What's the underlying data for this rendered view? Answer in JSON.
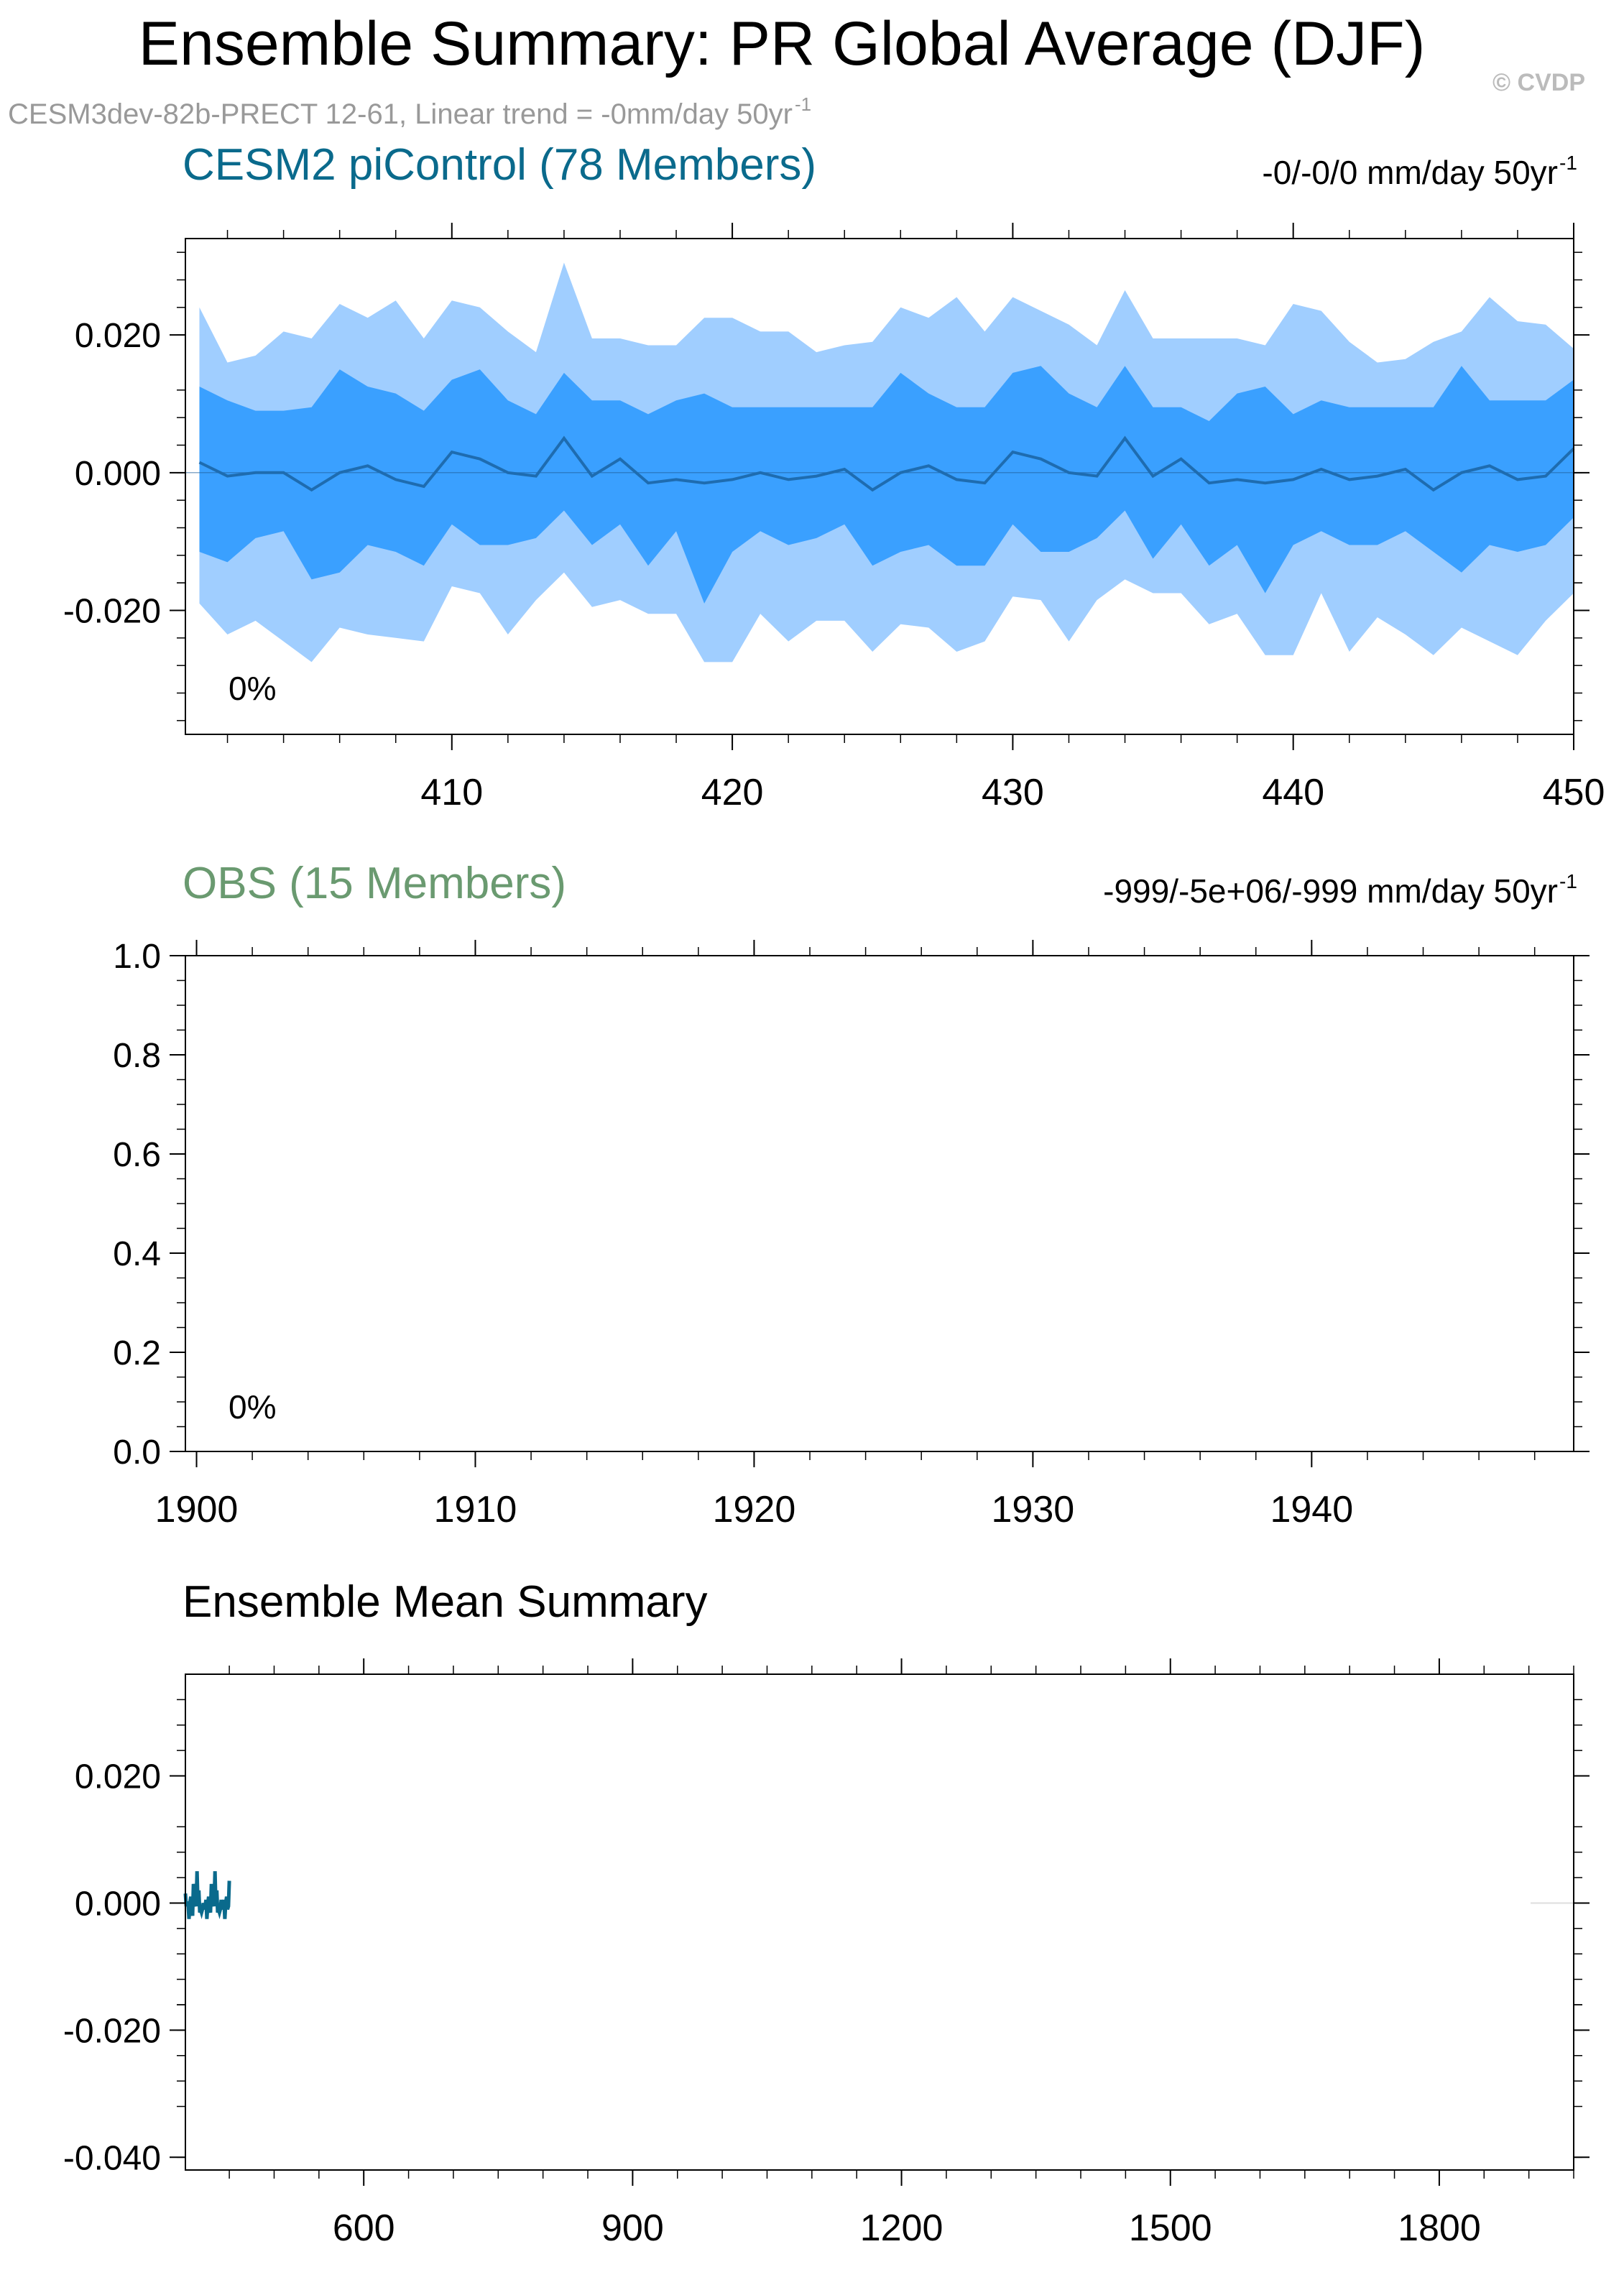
{
  "page": {
    "title": "Ensemble Summary: PR Global Average (DJF)",
    "watermark": "© CVDP",
    "subtitle_main": "CESM3dev-82b-PRECT 12-61, Linear trend = -0mm/day 50yr",
    "subtitle_sup": "-1"
  },
  "colors": {
    "band_outer": "#a0ceff",
    "band_inner": "#3aa0ff",
    "mean_line": "#1e6cb0",
    "model_title": "#0a6a8c",
    "obs_title": "#6a9a70",
    "subtitle": "#999999",
    "watermark": "#bbbbbb",
    "summary_line": "#0a6a8c"
  },
  "chart_data": [
    {
      "type": "area",
      "panel": "model",
      "title": "CESM2 piControl (78 Members)",
      "trend_main": "-0/-0/0 mm/day 50yr",
      "trend_sup": "-1",
      "annotation": "0%",
      "xlim": [
        400.5,
        450
      ],
      "ylim": [
        -0.038,
        0.034
      ],
      "xticks": [
        410,
        420,
        430,
        440,
        450
      ],
      "yticks": [
        0.02,
        0.0,
        -0.02
      ],
      "tick_labels_y": [
        "0.020",
        "0.000",
        "-0.020"
      ],
      "tick_labels_x": [
        "410",
        "420",
        "430",
        "440",
        "450"
      ],
      "x": [
        401,
        402,
        403,
        404,
        405,
        406,
        407,
        408,
        409,
        410,
        411,
        412,
        413,
        414,
        415,
        416,
        417,
        418,
        419,
        420,
        421,
        422,
        423,
        424,
        425,
        426,
        427,
        428,
        429,
        430,
        431,
        432,
        433,
        434,
        435,
        436,
        437,
        438,
        439,
        440,
        441,
        442,
        443,
        444,
        445,
        446,
        447,
        448,
        449,
        450
      ],
      "series": [
        {
          "role": "max",
          "values": [
            0.024,
            0.016,
            0.017,
            0.0205,
            0.0195,
            0.0245,
            0.0225,
            0.025,
            0.0195,
            0.025,
            0.024,
            0.0205,
            0.0175,
            0.0305,
            0.0195,
            0.0195,
            0.0185,
            0.0185,
            0.0225,
            0.0225,
            0.0205,
            0.0205,
            0.0175,
            0.0185,
            0.019,
            0.024,
            0.0225,
            0.0255,
            0.0205,
            0.0255,
            0.0235,
            0.0215,
            0.0185,
            0.0265,
            0.0195,
            0.0195,
            0.0195,
            0.0195,
            0.0185,
            0.0245,
            0.0235,
            0.019,
            0.016,
            0.0165,
            0.019,
            0.0205,
            0.0255,
            0.022,
            0.0215,
            0.018
          ]
        },
        {
          "role": "p90",
          "values": [
            0.0125,
            0.0105,
            0.009,
            0.009,
            0.0095,
            0.015,
            0.0125,
            0.0115,
            0.009,
            0.0135,
            0.015,
            0.0105,
            0.0085,
            0.0145,
            0.0105,
            0.0105,
            0.0085,
            0.0105,
            0.0115,
            0.0095,
            0.0095,
            0.0095,
            0.0095,
            0.0095,
            0.0095,
            0.0145,
            0.0115,
            0.0095,
            0.0095,
            0.0145,
            0.0155,
            0.0115,
            0.0095,
            0.0155,
            0.0095,
            0.0095,
            0.0075,
            0.0115,
            0.0125,
            0.0085,
            0.0105,
            0.0095,
            0.0095,
            0.0095,
            0.0095,
            0.0155,
            0.0105,
            0.0105,
            0.0105,
            0.0135
          ]
        },
        {
          "role": "mean",
          "values": [
            0.0015,
            -0.0005,
            0.0,
            0.0,
            -0.0025,
            0.0,
            0.001,
            -0.001,
            -0.002,
            0.003,
            0.002,
            0.0,
            -0.0005,
            0.005,
            -0.0005,
            0.002,
            -0.0015,
            -0.001,
            -0.0015,
            -0.001,
            0.0,
            -0.001,
            -0.0005,
            0.0005,
            -0.0025,
            0.0,
            0.001,
            -0.001,
            -0.0015,
            0.003,
            0.002,
            0.0,
            -0.0005,
            0.005,
            -0.0005,
            0.002,
            -0.0015,
            -0.001,
            -0.0015,
            -0.001,
            0.0005,
            -0.001,
            -0.0005,
            0.0005,
            -0.0025,
            0.0,
            0.001,
            -0.001,
            -0.0005,
            0.0035
          ]
        },
        {
          "role": "p10",
          "values": [
            -0.0115,
            -0.013,
            -0.0095,
            -0.0085,
            -0.0155,
            -0.0145,
            -0.0105,
            -0.0115,
            -0.0135,
            -0.0075,
            -0.0105,
            -0.0105,
            -0.0095,
            -0.0055,
            -0.0105,
            -0.0075,
            -0.0135,
            -0.0085,
            -0.019,
            -0.0115,
            -0.0085,
            -0.0105,
            -0.0095,
            -0.0075,
            -0.0135,
            -0.0115,
            -0.0105,
            -0.0135,
            -0.0135,
            -0.0075,
            -0.0115,
            -0.0115,
            -0.0095,
            -0.0055,
            -0.0125,
            -0.0075,
            -0.0135,
            -0.0105,
            -0.0175,
            -0.0105,
            -0.0085,
            -0.0105,
            -0.0105,
            -0.0085,
            -0.0115,
            -0.0145,
            -0.0105,
            -0.0115,
            -0.0105,
            -0.0065
          ]
        },
        {
          "role": "min",
          "values": [
            -0.019,
            -0.0235,
            -0.0215,
            -0.0245,
            -0.0275,
            -0.0225,
            -0.0235,
            -0.024,
            -0.0245,
            -0.0165,
            -0.0175,
            -0.0235,
            -0.0185,
            -0.0145,
            -0.0195,
            -0.0185,
            -0.0205,
            -0.0205,
            -0.0275,
            -0.0275,
            -0.0205,
            -0.0245,
            -0.0215,
            -0.0215,
            -0.026,
            -0.022,
            -0.0225,
            -0.026,
            -0.0245,
            -0.018,
            -0.0185,
            -0.0245,
            -0.0185,
            -0.0155,
            -0.0175,
            -0.0175,
            -0.022,
            -0.0205,
            -0.0265,
            -0.0265,
            -0.0175,
            -0.026,
            -0.021,
            -0.0235,
            -0.0265,
            -0.0225,
            -0.0245,
            -0.0265,
            -0.0215,
            -0.0175
          ]
        }
      ]
    },
    {
      "type": "line",
      "panel": "obs",
      "title": "OBS (15 Members)",
      "trend_main": "-999/-5e+06/-999 mm/day 50yr",
      "trend_sup": "-1",
      "annotation": "0%",
      "xlim": [
        1899.6,
        1949.4
      ],
      "ylim": [
        0.0,
        1.0
      ],
      "xticks": [
        1900,
        1910,
        1920,
        1930,
        1940
      ],
      "yticks": [
        1.0,
        0.8,
        0.6,
        0.4,
        0.2,
        0.0
      ],
      "tick_labels_y": [
        "1.0",
        "0.8",
        "0.6",
        "0.4",
        "0.2",
        "0.0"
      ],
      "tick_labels_x": [
        "1900",
        "1910",
        "1920",
        "1930",
        "1940"
      ],
      "series": []
    },
    {
      "type": "line",
      "panel": "summary",
      "title": "Ensemble Mean Summary",
      "xlim": [
        401,
        1950
      ],
      "ylim": [
        -0.042,
        0.036
      ],
      "xticks": [
        600,
        900,
        1200,
        1500,
        1800
      ],
      "yticks": [
        0.02,
        0.0,
        -0.02,
        -0.04
      ],
      "tick_labels_y": [
        "0.020",
        "0.000",
        "-0.020",
        "-0.040"
      ],
      "tick_labels_x": [
        "600",
        "900",
        "1200",
        "1500",
        "1800"
      ],
      "series": [
        {
          "x": [
            401,
            402,
            403,
            404,
            405,
            406,
            407,
            408,
            409,
            410,
            411,
            412,
            413,
            414,
            415,
            416,
            417,
            418,
            419,
            420,
            421,
            422,
            423,
            424,
            425,
            426,
            427,
            428,
            429,
            430,
            431,
            432,
            433,
            434,
            435,
            436,
            437,
            438,
            439,
            440,
            441,
            442,
            443,
            444,
            445,
            446,
            447,
            448,
            449,
            450
          ],
          "values": [
            0.0015,
            -0.0005,
            0.0,
            0.0,
            -0.0025,
            0.0,
            0.001,
            -0.001,
            -0.002,
            0.003,
            0.002,
            0.0,
            -0.0005,
            0.005,
            -0.0005,
            0.002,
            -0.0015,
            -0.001,
            -0.0015,
            -0.001,
            0.0,
            -0.001,
            -0.0005,
            0.0005,
            -0.0025,
            0.0,
            0.001,
            -0.001,
            -0.0015,
            0.003,
            0.002,
            0.0,
            -0.0005,
            0.005,
            -0.0005,
            0.002,
            -0.0015,
            -0.001,
            -0.0015,
            -0.001,
            0.0005,
            -0.001,
            -0.0005,
            0.0005,
            -0.0025,
            0.0,
            0.001,
            -0.001,
            -0.0005,
            0.0035
          ]
        }
      ]
    }
  ]
}
